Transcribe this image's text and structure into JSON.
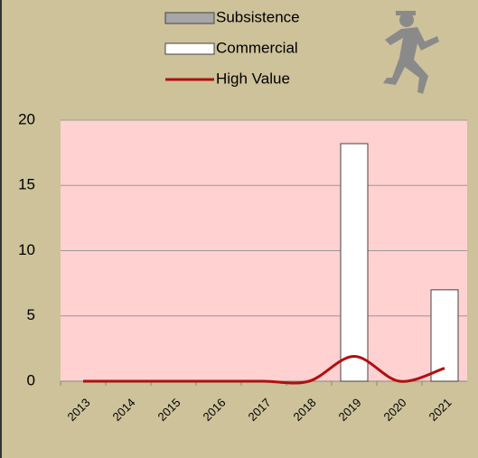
{
  "chart_data": {
    "type": "bar",
    "categories": [
      "2013",
      "2014",
      "2015",
      "2016",
      "2017",
      "2018",
      "2019",
      "2020",
      "2021"
    ],
    "series": [
      {
        "name": "Subsistence",
        "color": "#a6a6a6",
        "values": [
          0,
          0,
          0,
          0,
          0,
          0,
          0,
          0,
          0
        ]
      },
      {
        "name": "Commercial",
        "color": "#ffffff",
        "values": [
          0,
          0,
          0,
          0,
          0,
          0,
          18.2,
          0,
          7
        ]
      },
      {
        "name": "High Value",
        "type": "line",
        "color": "#b01010",
        "values": [
          0,
          0,
          0,
          0,
          0,
          0,
          1.9,
          0,
          1
        ]
      }
    ],
    "ylim": [
      0,
      20
    ],
    "yticks": [
      0,
      5,
      10,
      15,
      20
    ],
    "grid": true,
    "legend": "top"
  }
}
